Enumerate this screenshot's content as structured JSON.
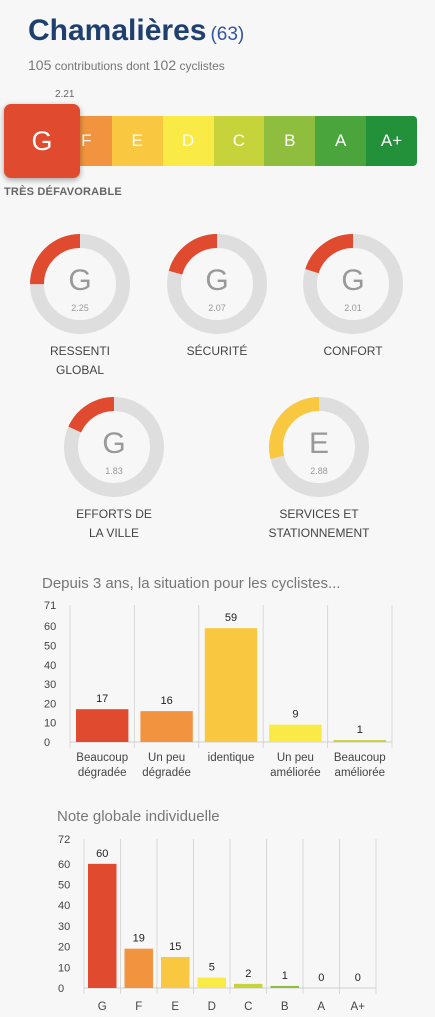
{
  "header": {
    "city": "Chamalières",
    "count": "(63)",
    "contrib_count": "105",
    "contrib_text": " contributions dont ",
    "cyclist_count": "102",
    "cyclist_text": " cyclistes"
  },
  "overall": {
    "score": "2.21",
    "current_grade": "G",
    "label": "TRÈS DÉFAVORABLE",
    "scale": [
      {
        "grade": "G",
        "color": "#e04a2f"
      },
      {
        "grade": "F",
        "color": "#f2943f"
      },
      {
        "grade": "E",
        "color": "#f9c840"
      },
      {
        "grade": "D",
        "color": "#faea45"
      },
      {
        "grade": "C",
        "color": "#c7d33b"
      },
      {
        "grade": "B",
        "color": "#8fbe3e"
      },
      {
        "grade": "A",
        "color": "#4aa53c"
      },
      {
        "grade": "A+",
        "color": "#23913a"
      }
    ]
  },
  "categories": [
    {
      "name": "RESSENTI",
      "name2": "GLOBAL",
      "grade": "G",
      "score": "2.25",
      "fraction": 0.25,
      "color": "#e04a2f"
    },
    {
      "name": "SÉCURITÉ",
      "name2": "",
      "grade": "G",
      "score": "2.07",
      "fraction": 0.207,
      "color": "#e04a2f"
    },
    {
      "name": "CONFORT",
      "name2": "",
      "grade": "G",
      "score": "2.01",
      "fraction": 0.201,
      "color": "#e04a2f"
    },
    {
      "name": "EFFORTS DE",
      "name2": "LA VILLE",
      "grade": "G",
      "score": "1.83",
      "fraction": 0.183,
      "color": "#e04a2f"
    },
    {
      "name": "SERVICES ET",
      "name2": "STATIONNEMENT",
      "grade": "E",
      "score": "2.88",
      "fraction": 0.288,
      "color": "#f9c840"
    }
  ],
  "chart_data": [
    {
      "type": "bar",
      "title": "Depuis 3 ans, la situation pour les cyclistes...",
      "categories": [
        [
          "Beaucoup",
          "dégradée"
        ],
        [
          "Un peu",
          "dégradée"
        ],
        [
          "identique"
        ],
        [
          "Un peu",
          "améliorée"
        ],
        [
          "Beaucoup",
          "améliorée"
        ]
      ],
      "values": [
        17,
        16,
        59,
        9,
        1
      ],
      "colors": [
        "#e04a2f",
        "#f2943f",
        "#f9c840",
        "#faea45",
        "#c7d33b"
      ],
      "yticks": [
        0,
        10,
        20,
        30,
        40,
        50,
        60,
        71
      ],
      "ylim": [
        0,
        71
      ],
      "grid": true
    },
    {
      "type": "bar",
      "title": "Note globale individuelle",
      "categories": [
        [
          "G"
        ],
        [
          "F"
        ],
        [
          "E"
        ],
        [
          "D"
        ],
        [
          "C"
        ],
        [
          "B"
        ],
        [
          "A"
        ],
        [
          "A+"
        ]
      ],
      "values": [
        60,
        19,
        15,
        5,
        2,
        1,
        0,
        0
      ],
      "colors": [
        "#e04a2f",
        "#f2943f",
        "#f9c840",
        "#faea45",
        "#c7d33b",
        "#8fbe3e",
        "#4aa53c",
        "#23913a"
      ],
      "yticks": [
        0,
        10,
        20,
        30,
        40,
        50,
        60,
        72
      ],
      "ylim": [
        0,
        72
      ],
      "grid": true
    }
  ]
}
